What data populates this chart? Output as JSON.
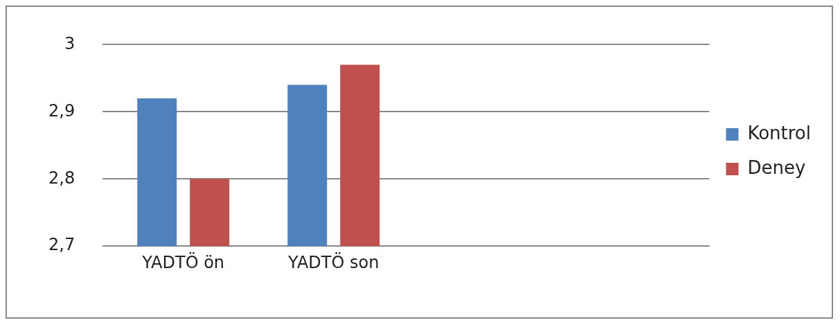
{
  "chart_data": {
    "type": "bar",
    "categories": [
      "YADTÖ ön",
      "YADTÖ son",
      null,
      null
    ],
    "series": [
      {
        "name": "Kontrol",
        "color": "#4f81bd",
        "values": [
          2.92,
          2.94,
          null,
          null
        ]
      },
      {
        "name": "Deney",
        "color": "#c0504d",
        "values": [
          2.8,
          2.97,
          null,
          null
        ]
      }
    ],
    "ylim": [
      2.7,
      3
    ],
    "yticks": [
      {
        "value": 2.7,
        "label": "2,7"
      },
      {
        "value": 2.8,
        "label": "2,8"
      },
      {
        "value": 2.9,
        "label": "2,9"
      },
      {
        "value": 3,
        "label": "3"
      }
    ],
    "grid": "y",
    "legend": "right"
  }
}
